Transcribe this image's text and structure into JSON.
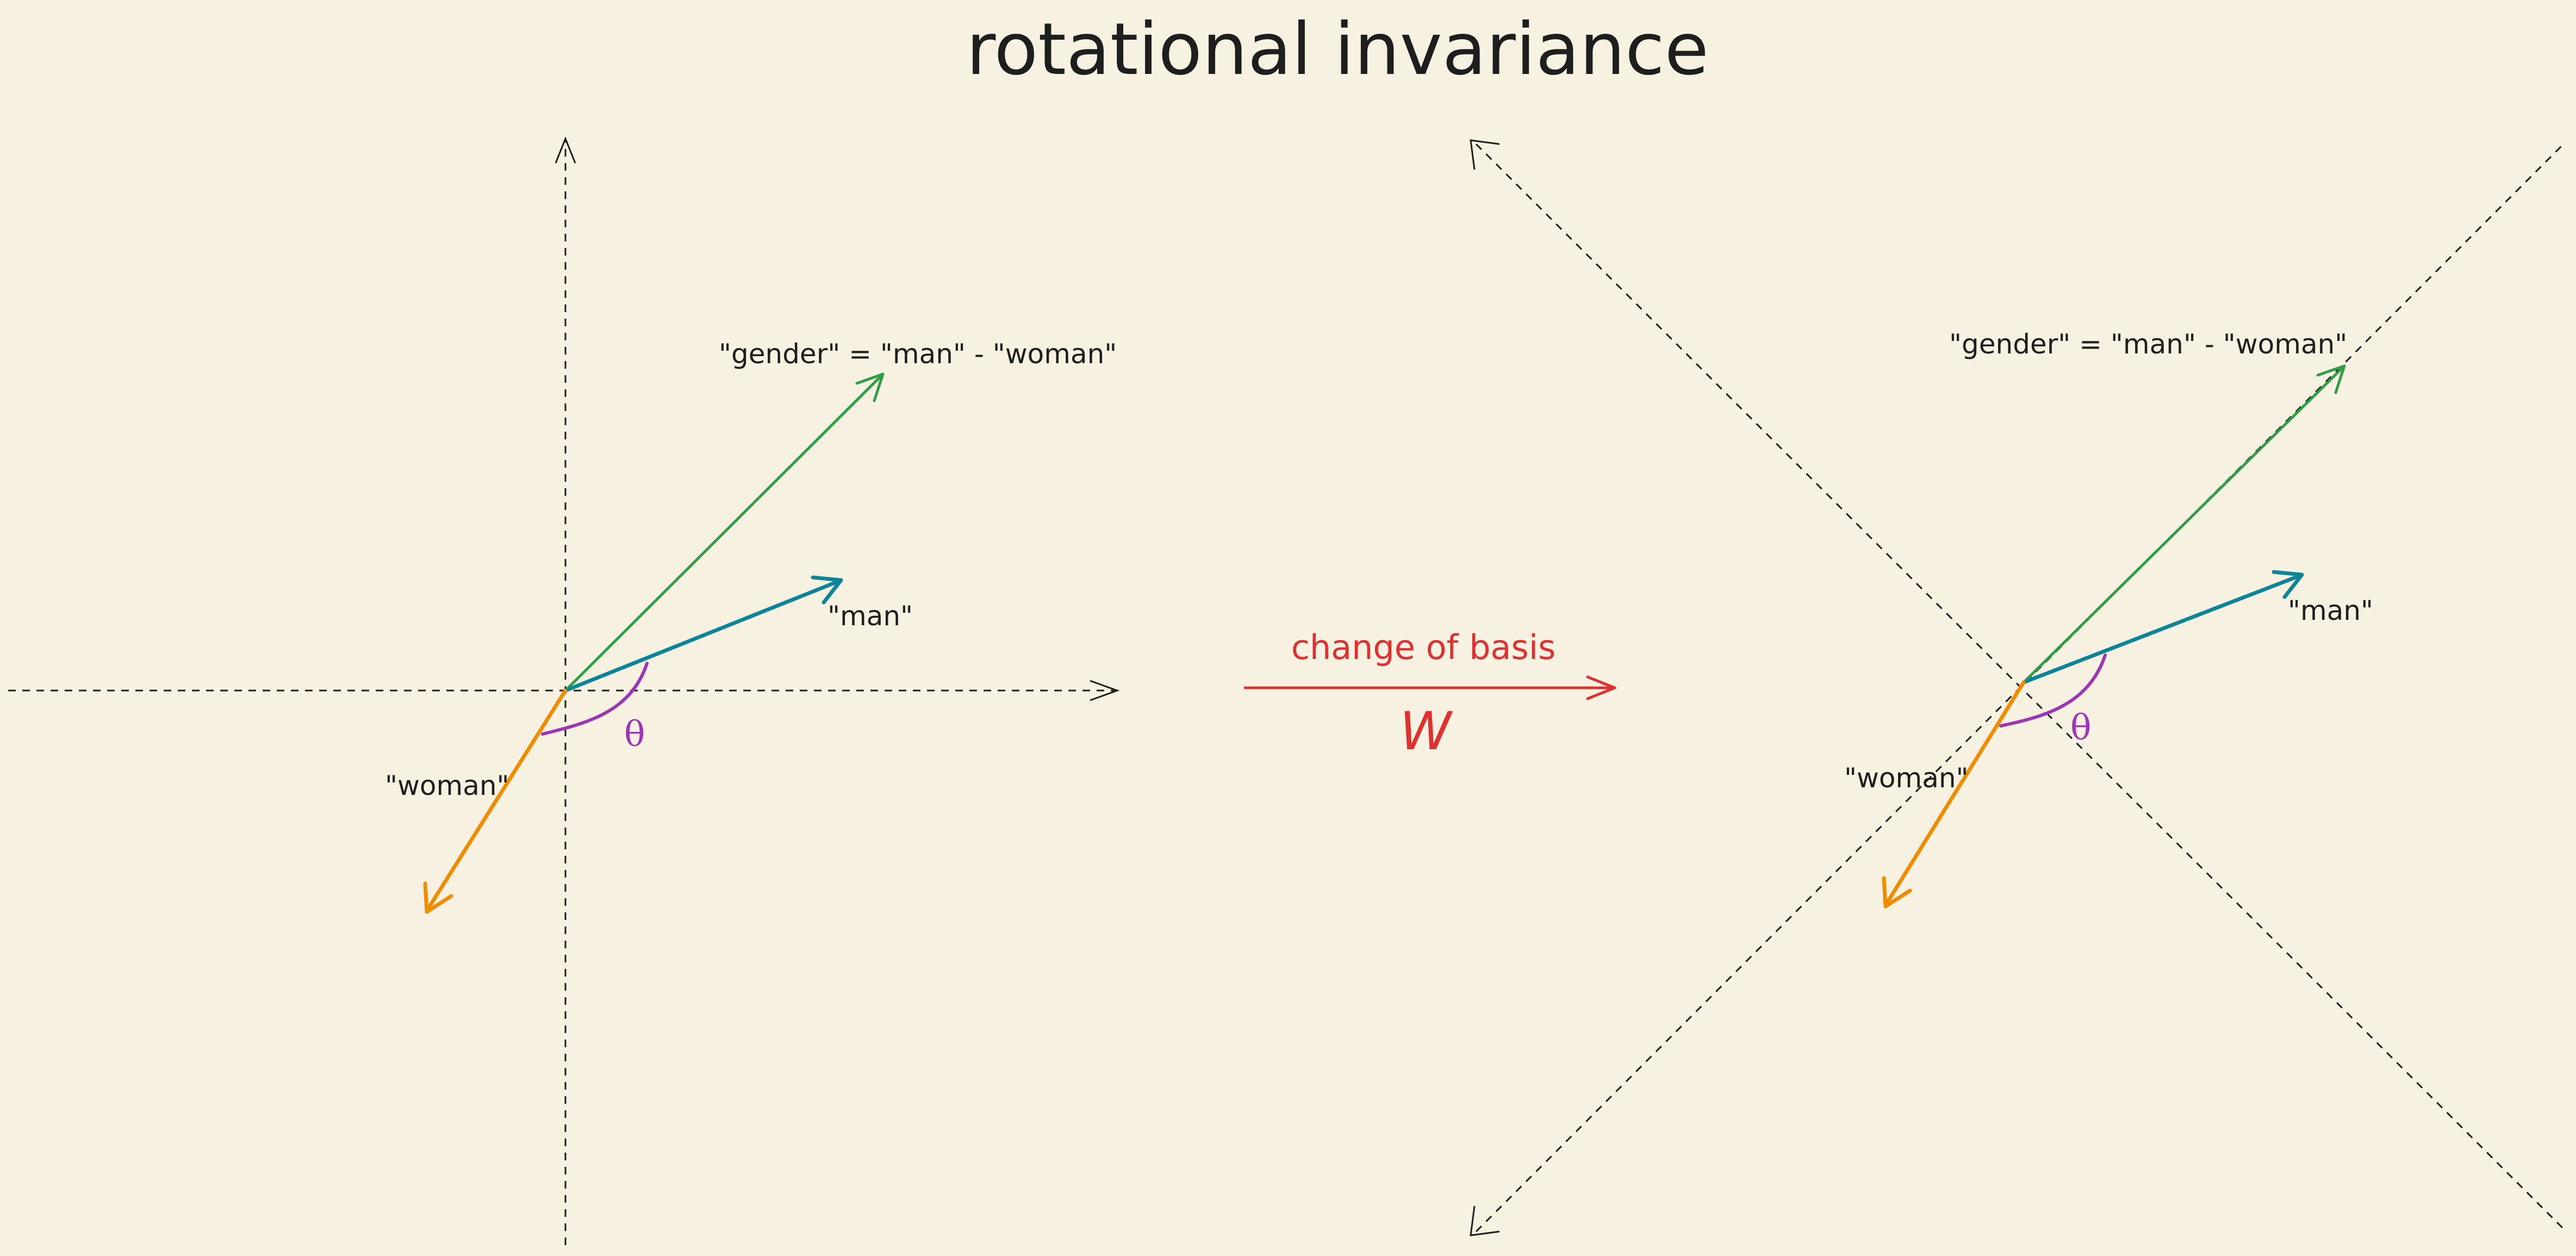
{
  "title": "rotational invariance",
  "colors": {
    "background": "#f6f1e0",
    "gender_vector": "#2f9e44",
    "man_vector": "#0c8599",
    "woman_vector": "#f08c00",
    "angle": "#9c36b5",
    "transform": "#e03131",
    "axes": "#1e1e1e"
  },
  "left_panel": {
    "gender_label": "\"gender\" = \"man\" - \"woman\"",
    "man_label": "\"man\"",
    "woman_label": "\"woman\"",
    "angle_label": "θ"
  },
  "transform": {
    "label": "change of basis",
    "matrix_label": "W"
  },
  "right_panel": {
    "gender_label": "\"gender\" = \"man\" - \"woman\"",
    "man_label": "\"man\"",
    "woman_label": "\"woman\"",
    "angle_label": "θ"
  }
}
